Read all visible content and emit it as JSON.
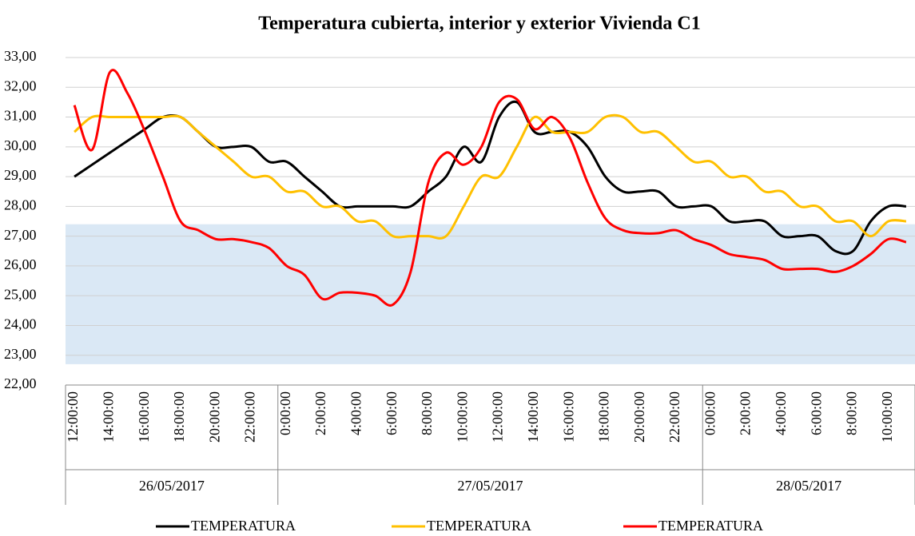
{
  "chart_data": {
    "type": "line",
    "title": "Temperatura cubierta, interior y exterior Vivienda C1",
    "categories": [
      "12:00:00",
      null,
      "14:00:00",
      null,
      "16:00:00",
      null,
      "18:00:00",
      null,
      "20:00:00",
      null,
      "22:00:00",
      null,
      "0:00:00",
      null,
      "2:00:00",
      null,
      "4:00:00",
      null,
      "6:00:00",
      null,
      "8:00:00",
      null,
      "10:00:00",
      null,
      "12:00:00",
      null,
      "14:00:00",
      null,
      "16:00:00",
      null,
      "18:00:00",
      null,
      "20:00:00",
      null,
      "22:00:00",
      null,
      "0:00:00",
      null,
      "2:00:00",
      null,
      "4:00:00",
      null,
      "6:00:00",
      null,
      "8:00:00",
      null,
      "10:00:00",
      null
    ],
    "category_groups": [
      {
        "label": "26/05/2017",
        "size": 12
      },
      {
        "label": "27/05/2017",
        "size": 24
      },
      {
        "label": "28/05/2017",
        "size": 12
      }
    ],
    "series": [
      {
        "name": "TEMPERATURA",
        "color": "#000000",
        "values": [
          29.0,
          29.4,
          29.8,
          30.2,
          30.6,
          31.0,
          31.0,
          30.5,
          30.0,
          30.0,
          30.0,
          29.5,
          29.5,
          29.0,
          28.5,
          28.0,
          28.0,
          28.0,
          28.0,
          28.0,
          28.5,
          29.0,
          30.0,
          29.5,
          31.0,
          31.5,
          30.5,
          30.5,
          30.5,
          30.0,
          29.0,
          28.5,
          28.5,
          28.5,
          28.0,
          28.0,
          28.0,
          27.5,
          27.5,
          27.5,
          27.0,
          27.0,
          27.0,
          26.5,
          26.5,
          27.5,
          28.0,
          28.0
        ]
      },
      {
        "name": "TEMPERATURA",
        "color": "#ffc000",
        "values": [
          30.5,
          31.0,
          31.0,
          31.0,
          31.0,
          31.0,
          31.0,
          30.5,
          30.0,
          29.5,
          29.0,
          29.0,
          28.5,
          28.5,
          28.0,
          28.0,
          27.5,
          27.5,
          27.0,
          27.0,
          27.0,
          27.0,
          28.0,
          29.0,
          29.0,
          30.0,
          31.0,
          30.5,
          30.5,
          30.5,
          31.0,
          31.0,
          30.5,
          30.5,
          30.0,
          29.5,
          29.5,
          29.0,
          29.0,
          28.5,
          28.5,
          28.0,
          28.0,
          27.5,
          27.5,
          27.0,
          27.5,
          27.5
        ]
      },
      {
        "name": "TEMPERATURA",
        "color": "#ff0000",
        "values": [
          31.4,
          29.9,
          32.5,
          31.8,
          30.5,
          29.0,
          27.5,
          27.2,
          26.9,
          26.9,
          26.8,
          26.6,
          26.0,
          25.7,
          24.9,
          25.1,
          25.1,
          25.0,
          24.7,
          25.8,
          28.8,
          29.8,
          29.4,
          30.0,
          31.5,
          31.6,
          30.6,
          31.0,
          30.3,
          28.8,
          27.6,
          27.2,
          27.1,
          27.1,
          27.2,
          26.9,
          26.7,
          26.4,
          26.3,
          26.2,
          25.9,
          25.9,
          25.9,
          25.8,
          26.0,
          26.4,
          26.9,
          26.8
        ]
      }
    ],
    "shaded_range": {
      "ylim": [
        22.7,
        27.4
      ],
      "color": "#dae8f5"
    },
    "ylim": [
      22,
      33
    ],
    "yticks": [
      {
        "value": 22,
        "label": "22,00"
      },
      {
        "value": 23,
        "label": "23,00"
      },
      {
        "value": 24,
        "label": "24,00"
      },
      {
        "value": 25,
        "label": "25,00"
      },
      {
        "value": 26,
        "label": "26,00"
      },
      {
        "value": 27,
        "label": "27,00"
      },
      {
        "value": 28,
        "label": "28,00"
      },
      {
        "value": 29,
        "label": "29,00"
      },
      {
        "value": 30,
        "label": "30,00"
      },
      {
        "value": 31,
        "label": "31,00"
      },
      {
        "value": 32,
        "label": "32,00"
      },
      {
        "value": 33,
        "label": "33,00"
      }
    ],
    "grid": true,
    "legend": "bottom"
  }
}
